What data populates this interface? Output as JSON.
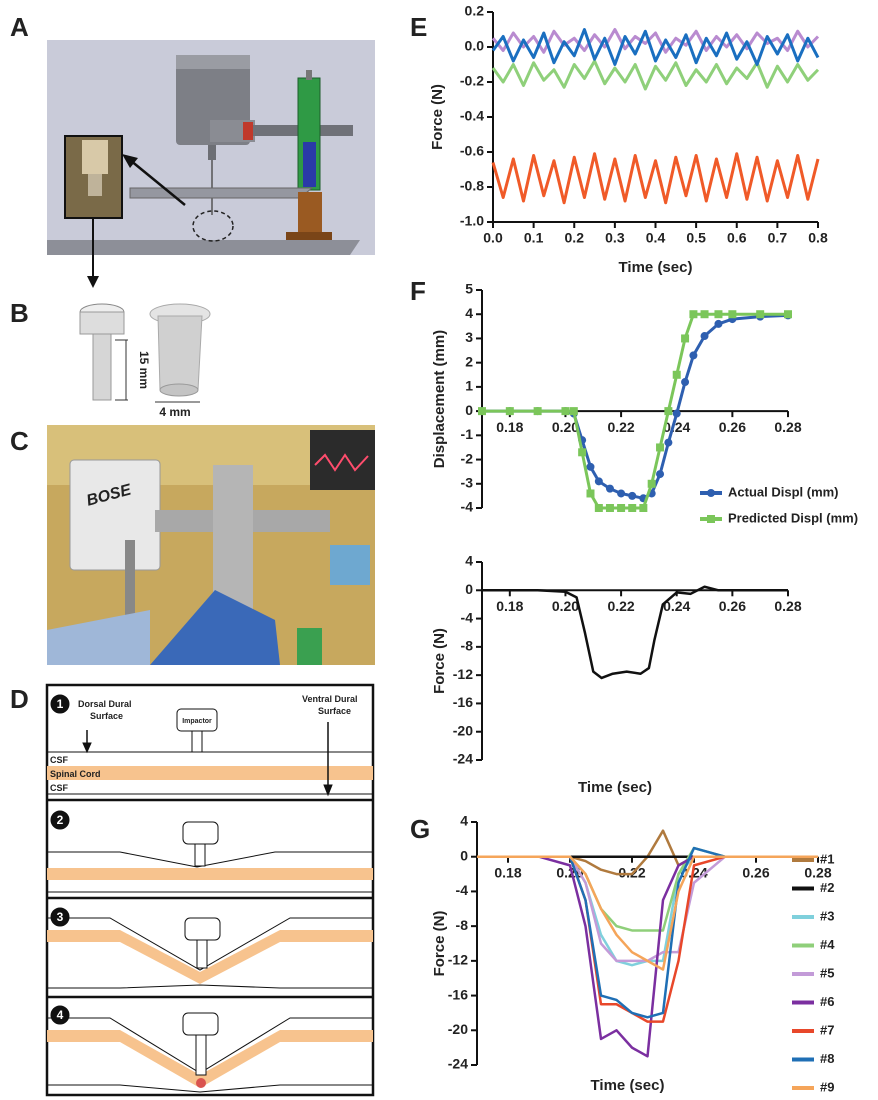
{
  "panel_labels": [
    "A",
    "B",
    "C",
    "D",
    "E",
    "F",
    "G"
  ],
  "panel_b": {
    "height": "15 mm",
    "width": "4 mm"
  },
  "panel_c": {
    "brand": "BOSE"
  },
  "panel_d": {
    "steps": [
      "1",
      "2",
      "3",
      "4"
    ],
    "dorsal_label": [
      "Dorsal Dural",
      "Surface"
    ],
    "impactor": "Impactor",
    "ventral_label": [
      "Ventral Dural",
      "Surface"
    ],
    "layers": [
      "CSF",
      "Spinal Cord",
      "CSF"
    ]
  },
  "chart_data": [
    {
      "type": "line",
      "ylabel": "Force (N)",
      "xlabel": "Time (sec)",
      "xlim": [
        0,
        0.8
      ],
      "xticks": [
        {
          "value": 0,
          "label": "0.0"
        },
        0.1,
        0.2,
        0.3,
        0.4,
        0.5,
        0.6,
        0.7,
        0.8
      ],
      "ylim": [
        -1.0,
        0.2
      ],
      "yticks": [
        0.2,
        {
          "value": 0,
          "label": "0.0"
        },
        -0.2,
        -0.4,
        -0.6,
        -0.8,
        {
          "value": -1.0,
          "label": "-1.0"
        }
      ],
      "x": [
        0,
        0.025,
        0.05,
        0.075,
        0.1,
        0.125,
        0.15,
        0.175,
        0.2,
        0.225,
        0.25,
        0.275,
        0.3,
        0.325,
        0.35,
        0.375,
        0.4,
        0.425,
        0.45,
        0.475,
        0.5,
        0.525,
        0.55,
        0.575,
        0.6,
        0.625,
        0.65,
        0.675,
        0.7,
        0.725,
        0.75,
        0.775,
        0.8
      ],
      "series": [
        {
          "color": "#f05a28",
          "values": [
            -0.66,
            -0.86,
            -0.64,
            -0.88,
            -0.62,
            -0.85,
            -0.65,
            -0.89,
            -0.63,
            -0.86,
            -0.61,
            -0.87,
            -0.64,
            -0.88,
            -0.62,
            -0.86,
            -0.65,
            -0.89,
            -0.63,
            -0.85,
            -0.62,
            -0.88,
            -0.64,
            -0.86,
            -0.61,
            -0.87,
            -0.63,
            -0.88,
            -0.65,
            -0.86,
            -0.62,
            -0.87,
            -0.64
          ]
        },
        {
          "color": "#8fd07a",
          "values": [
            -0.12,
            -0.2,
            -0.1,
            -0.22,
            -0.09,
            -0.19,
            -0.13,
            -0.23,
            -0.1,
            -0.18,
            -0.08,
            -0.21,
            -0.12,
            -0.2,
            -0.1,
            -0.24,
            -0.11,
            -0.19,
            -0.09,
            -0.22,
            -0.13,
            -0.2,
            -0.1,
            -0.21,
            -0.12,
            -0.18,
            -0.09,
            -0.23,
            -0.11,
            -0.2,
            -0.1,
            -0.19,
            -0.13
          ]
        },
        {
          "color": "#b98bd0",
          "values": [
            0.05,
            -0.02,
            0.08,
            0.0,
            0.06,
            -0.03,
            0.09,
            0.01,
            0.05,
            -0.02,
            0.07,
            0.0,
            0.1,
            -0.01,
            0.06,
            0.02,
            0.08,
            -0.03,
            0.05,
            0.01,
            0.09,
            -0.02,
            0.06,
            0.0,
            0.07,
            -0.01,
            0.08,
            0.02,
            0.05,
            -0.02,
            0.09,
            0.0,
            0.06
          ]
        },
        {
          "color": "#1a6fc0",
          "values": [
            -0.02,
            0.06,
            -0.08,
            0.04,
            -0.06,
            0.08,
            -0.09,
            0.03,
            -0.05,
            0.1,
            -0.07,
            0.05,
            -0.1,
            0.06,
            -0.04,
            0.09,
            -0.08,
            0.04,
            -0.06,
            0.07,
            -0.09,
            0.05,
            -0.05,
            0.08,
            -0.07,
            0.03,
            -0.1,
            0.06,
            -0.04,
            0.07,
            -0.08,
            0.05,
            -0.06
          ]
        }
      ]
    },
    {
      "type": "line",
      "ylabel": "Displacement (mm)",
      "legend": "lower right",
      "xlim": [
        0.17,
        0.28
      ],
      "xticks": [
        0.18,
        {
          "value": 0.2,
          "label": "0.20"
        },
        0.22,
        0.24,
        0.26,
        0.28
      ],
      "ylim": [
        -4,
        5
      ],
      "yticks": [
        5,
        4,
        3,
        2,
        1,
        0,
        -1,
        -2,
        -3,
        -4
      ],
      "x": [
        0.17,
        0.18,
        0.19,
        0.2,
        0.203,
        0.206,
        0.209,
        0.212,
        0.216,
        0.22,
        0.224,
        0.228,
        0.231,
        0.234,
        0.237,
        0.24,
        0.243,
        0.246,
        0.25,
        0.255,
        0.26,
        0.27,
        0.28
      ],
      "series": [
        {
          "name": "Actual Displ (mm)",
          "color": "#2e5fb0",
          "marker": "circle",
          "values": [
            0,
            0,
            0,
            0,
            -0.1,
            -1.2,
            -2.3,
            -2.9,
            -3.2,
            -3.4,
            -3.5,
            -3.6,
            -3.4,
            -2.6,
            -1.3,
            -0.1,
            1.2,
            2.3,
            3.1,
            3.6,
            3.8,
            3.9,
            3.95
          ]
        },
        {
          "name": "Predicted Displ (mm)",
          "color": "#7bc65a",
          "marker": "square",
          "values": [
            0,
            0,
            0,
            0,
            0,
            -1.7,
            -3.4,
            -4,
            -4,
            -4,
            -4,
            -4,
            -3,
            -1.5,
            0,
            1.5,
            3,
            4,
            4,
            4,
            4,
            4,
            4
          ]
        }
      ]
    },
    {
      "type": "line",
      "ylabel": "Force (N)",
      "xlabel": "Time (sec)",
      "xlim": [
        0.17,
        0.28
      ],
      "xticks": [
        0.18,
        {
          "value": 0.2,
          "label": "0.20"
        },
        0.22,
        0.24,
        0.26,
        0.28
      ],
      "ylim": [
        -24,
        4
      ],
      "yticks": [
        4,
        0,
        -4,
        -8,
        -12,
        -16,
        -20,
        -24
      ],
      "x": [
        0.17,
        0.18,
        0.19,
        0.2,
        0.204,
        0.207,
        0.21,
        0.213,
        0.217,
        0.222,
        0.227,
        0.23,
        0.232,
        0.235,
        0.24,
        0.245,
        0.25,
        0.255,
        0.26,
        0.27,
        0.28
      ],
      "series": [
        {
          "color": "#111111",
          "values": [
            0,
            0,
            0,
            -0.2,
            -1,
            -6,
            -11.5,
            -12.4,
            -11.8,
            -11.5,
            -11.8,
            -11,
            -7,
            -2,
            -0.3,
            -0.5,
            0.5,
            0,
            0,
            0,
            0
          ]
        }
      ]
    },
    {
      "type": "line",
      "ylabel": "Force (N)",
      "xlabel": "Time (sec)",
      "legend": "right",
      "xlim": [
        0.17,
        0.28
      ],
      "xticks": [
        0.18,
        {
          "value": 0.2,
          "label": "0.20"
        },
        0.22,
        0.24,
        0.26,
        0.28
      ],
      "ylim": [
        -24,
        4
      ],
      "yticks": [
        4,
        0,
        -4,
        -8,
        -12,
        -16,
        -20,
        -24
      ],
      "x": [
        0.17,
        0.18,
        0.19,
        0.2,
        0.205,
        0.21,
        0.215,
        0.22,
        0.225,
        0.23,
        0.235,
        0.24,
        0.25,
        0.26,
        0.27,
        0.28
      ],
      "series": [
        {
          "name": "#1",
          "color": "#b07a3e",
          "values": [
            0,
            0,
            0,
            0,
            -0.5,
            -1.5,
            -2,
            -2,
            0,
            3,
            -1,
            0,
            0,
            0,
            0,
            0
          ]
        },
        {
          "name": "#2",
          "color": "#111111",
          "values": [
            0,
            0,
            0,
            0,
            0,
            0,
            0,
            0,
            0,
            0,
            0,
            0,
            0,
            0,
            0,
            0
          ]
        },
        {
          "name": "#3",
          "color": "#7fd0dc",
          "values": [
            0,
            0,
            0,
            0,
            -3,
            -9,
            -12,
            -12.5,
            -12,
            -12,
            -2,
            0,
            0,
            0,
            0,
            0
          ]
        },
        {
          "name": "#4",
          "color": "#8fcf7a",
          "values": [
            0,
            0,
            0,
            0,
            -2,
            -6,
            -8,
            -8.5,
            -8.5,
            -8.5,
            -2,
            1,
            0,
            0,
            0,
            0
          ]
        },
        {
          "name": "#5",
          "color": "#c39bd8",
          "values": [
            0,
            0,
            0,
            0,
            -3,
            -10,
            -12,
            -12,
            -12,
            -11,
            -11,
            -3,
            0,
            0,
            0,
            0
          ]
        },
        {
          "name": "#6",
          "color": "#7b2fa0",
          "values": [
            0,
            0,
            0,
            -1,
            -8,
            -21,
            -20,
            -22,
            -23,
            -5,
            -1,
            0,
            0,
            0,
            0,
            0
          ]
        },
        {
          "name": "#7",
          "color": "#e8472a",
          "values": [
            0,
            0,
            0,
            0,
            -5,
            -17,
            -17,
            -18,
            -19,
            -19,
            -12,
            -1,
            0,
            0,
            0,
            0
          ]
        },
        {
          "name": "#8",
          "color": "#1f6fb5",
          "values": [
            0,
            0,
            0,
            0,
            -5,
            -16,
            -16.5,
            -18,
            -18.5,
            -18,
            -3,
            1,
            0,
            0,
            0,
            0
          ]
        },
        {
          "name": "#9",
          "color": "#f5a55a",
          "values": [
            0,
            0,
            0,
            0,
            -2,
            -6,
            -9,
            -11,
            -12,
            -13,
            -4,
            0,
            0,
            0,
            0,
            0
          ]
        }
      ]
    }
  ]
}
